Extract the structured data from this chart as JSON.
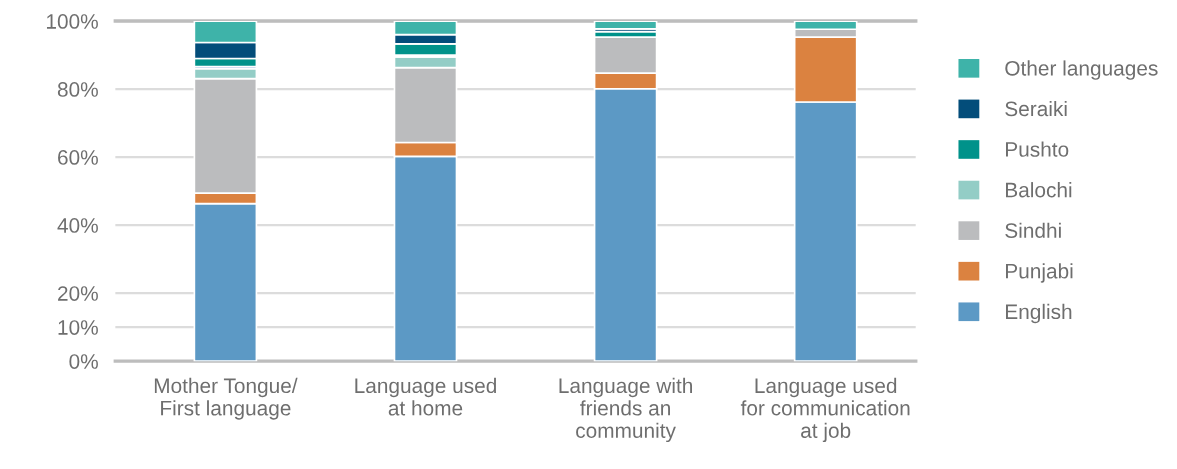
{
  "chart_data": {
    "type": "bar",
    "stacked": true,
    "categories": [
      "Mother Tongue/\nFirst language",
      "Language used\nat home",
      "Language with\nfriends an\ncommunity",
      "Language used\nfor communication\nat job"
    ],
    "series": [
      {
        "name": "English",
        "color": "#5c99c5",
        "values": [
          46.3,
          60.2,
          80.1,
          76.2
        ]
      },
      {
        "name": "Punjabi",
        "color": "#db8240",
        "values": [
          3.1,
          4.1,
          4.6,
          19.1
        ]
      },
      {
        "name": "Sindhi",
        "color": "#bbbcbe",
        "values": [
          33.7,
          22.0,
          10.6,
          2.3
        ]
      },
      {
        "name": "Balochi",
        "color": "#93cdc6",
        "values": [
          2.9,
          3.2,
          0,
          0
        ]
      },
      {
        "color": "#4a7fc0",
        "values": [
          0.6,
          0.5,
          0,
          0
        ]
      },
      {
        "name": "Pushto",
        "color": "#00928a",
        "values": [
          2.4,
          3.3,
          1.6,
          0
        ]
      },
      {
        "name": "Seraiki",
        "color": "#034d7a",
        "values": [
          4.7,
          2.7,
          0.8,
          0
        ]
      },
      {
        "name": "Other languages",
        "color": "#3eb3a9",
        "values": [
          6.3,
          4.0,
          2.3,
          2.4
        ]
      }
    ],
    "ylim": [
      0,
      100
    ],
    "yticks": [
      {
        "value": 0,
        "label": "0%"
      },
      {
        "value": 10,
        "label": "10%"
      },
      {
        "value": 20,
        "label": "20%"
      },
      {
        "value": 40,
        "label": "40%"
      },
      {
        "value": 60,
        "label": "60%"
      },
      {
        "value": 80,
        "label": "80%"
      },
      {
        "value": 100,
        "label": "100%"
      }
    ],
    "grid": "y",
    "legend": "right"
  }
}
